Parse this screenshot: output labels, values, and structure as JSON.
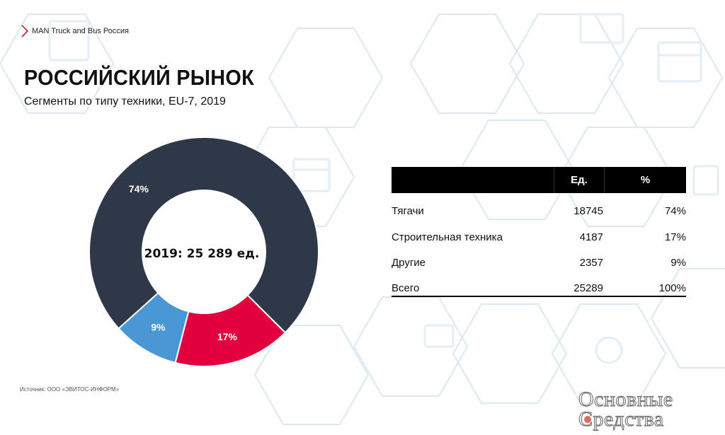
{
  "header": {
    "brand": "MAN Truck and Bus Россия"
  },
  "title": "РОССИЙСКИЙ РЫНОК",
  "subtitle": "Сегменты по типу техники, EU-7, 2019",
  "chart_data": {
    "type": "pie",
    "title": "РОССИЙСКИЙ РЫНОК",
    "subtitle": "Сегменты по типу техники, EU-7, 2019",
    "center_label": "2019: 25 289 ед.",
    "categories": [
      "Тягачи",
      "Строительная техника",
      "Другие"
    ],
    "values": [
      18745,
      4187,
      2357
    ],
    "percent_labels": [
      "74%",
      "17%",
      "9%"
    ],
    "colors": [
      "#2e3848",
      "#e3003e",
      "#4a97d6"
    ],
    "donut": true
  },
  "table": {
    "headers": [
      "",
      "Ед.",
      "%"
    ],
    "rows": [
      {
        "name": "Тягачи",
        "units": "18745",
        "pct": "74%"
      },
      {
        "name": "Строительная техника",
        "units": "4187",
        "pct": "17%"
      },
      {
        "name": "Другие",
        "units": "2357",
        "pct": "9%"
      }
    ],
    "total": {
      "name": "Всего",
      "units": "25289",
      "pct": "100%"
    }
  },
  "source": "Источник: ООО «ЭВИТОС-ИНФОРМ»",
  "watermark": {
    "line1": "Основные",
    "line2": "Средства"
  },
  "colors": {
    "accent": "#c8202f",
    "hex_pattern": "#dbe9f4"
  }
}
